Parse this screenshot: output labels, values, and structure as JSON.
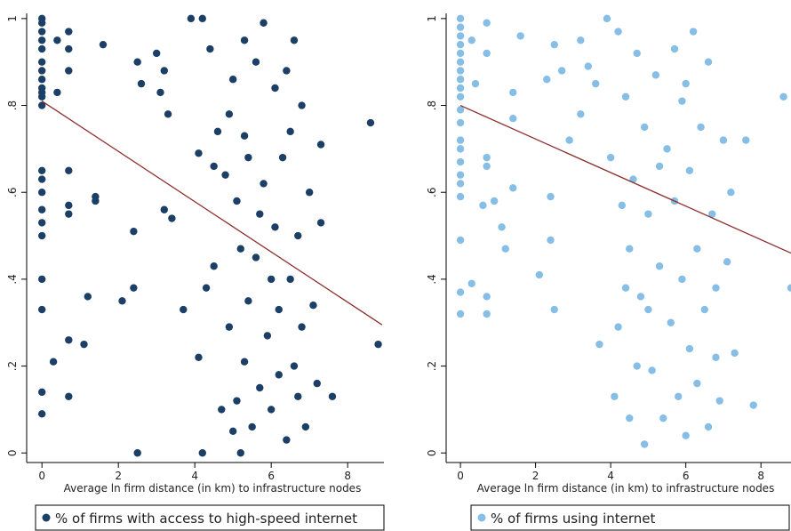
{
  "chart_data": [
    {
      "type": "scatter",
      "xlabel": "Average ln firm distance (in km) to infrastructure nodes",
      "xlim": [
        -0.4,
        8.95
      ],
      "xticks": [
        0,
        2,
        4,
        6,
        8
      ],
      "ylim": [
        -0.022,
        1.012
      ],
      "yticks": [
        0,
        {
          "value": 0.2,
          "label": ".2"
        },
        {
          "value": 0.4,
          "label": ".4"
        },
        {
          "value": 0.6,
          "label": ".6"
        },
        {
          "value": 0.8,
          "label": ".8"
        },
        1
      ],
      "x": [
        0,
        0,
        0,
        0,
        0,
        0,
        0,
        0,
        0,
        0,
        0,
        0,
        0,
        0,
        0,
        0,
        0,
        0,
        0,
        0,
        0,
        0,
        0.4,
        0.4,
        0.3,
        0.7,
        0.7,
        0.7,
        0.7,
        0.7,
        0.7,
        0.7,
        0.7,
        1.2,
        1.1,
        1.4,
        1.4,
        1.6,
        2.1,
        2.4,
        2.4,
        2.5,
        2.5,
        2.6,
        3.0,
        3.2,
        3.1,
        3.3,
        3.2,
        3.4,
        3.7,
        3.9,
        4.1,
        4.1,
        4.2,
        4.2,
        4.3,
        4.5,
        4.6,
        4.7,
        4.8,
        4.9,
        5.0,
        5.0,
        5.1,
        5.1,
        5.2,
        5.2,
        5.3,
        5.3,
        5.4,
        5.4,
        5.5,
        5.6,
        5.6,
        5.7,
        5.8,
        5.8,
        5.9,
        6.0,
        6.1,
        6.1,
        6.2,
        6.2,
        6.3,
        6.4,
        6.5,
        6.5,
        6.6,
        6.6,
        6.7,
        6.7,
        6.8,
        6.8,
        6.9,
        7.0,
        7.1,
        7.2,
        7.3,
        7.3,
        7.6,
        8.6,
        8.8,
        4.4,
        4.9,
        5.7,
        6.0,
        4.5,
        5.3,
        6.4
      ],
      "series": [
        {
          "name": "% of firms with access to high-speed internet",
          "color": "#1c3f66",
          "values": [
            1,
            0.99,
            0.97,
            0.95,
            0.93,
            0.9,
            0.88,
            0.86,
            0.84,
            0.83,
            0.82,
            0.8,
            0.65,
            0.63,
            0.6,
            0.56,
            0.53,
            0.5,
            0.4,
            0.33,
            0.14,
            0.09,
            0.95,
            0.83,
            0.21,
            0.97,
            0.93,
            0.88,
            0.65,
            0.57,
            0.55,
            0.26,
            0.13,
            0.36,
            0.25,
            0.59,
            0.58,
            0.94,
            0.35,
            0.38,
            0.51,
            0.9,
            0,
            0.85,
            0.92,
            0.88,
            0.83,
            0.78,
            0.56,
            0.54,
            0.33,
            1.0,
            0.22,
            0.69,
            1.0,
            0,
            0.38,
            0.43,
            0.74,
            0.1,
            0.64,
            0.29,
            0.05,
            0.86,
            0.58,
            0.12,
            0.47,
            0.0,
            0.95,
            0.21,
            0.68,
            0.35,
            0.06,
            0.9,
            0.45,
            0.15,
            0.99,
            0.62,
            0.27,
            0.1,
            0.84,
            0.52,
            0.33,
            0.18,
            0.68,
            0.03,
            0.74,
            0.4,
            0.95,
            0.2,
            0.5,
            0.13,
            0.8,
            0.29,
            0.06,
            0.6,
            0.34,
            0.16,
            0.71,
            0.53,
            0.13,
            0.76,
            0.25,
            0.93,
            0.78,
            0.55,
            0.4,
            0.66,
            0.73,
            0.88
          ]
        }
      ],
      "fit": {
        "color": "#8b2e2e",
        "x": [
          0,
          8.9
        ],
        "values": [
          0.81,
          0.295
        ]
      }
    },
    {
      "type": "scatter",
      "xlabel": "Average ln firm distance (in km) to infrastructure nodes",
      "xlim": [
        -0.38,
        8.8
      ],
      "xticks": [
        0,
        2,
        4,
        6,
        8
      ],
      "ylim": [
        -0.022,
        1.012
      ],
      "yticks": [
        0,
        {
          "value": 0.2,
          "label": ".2"
        },
        {
          "value": 0.4,
          "label": ".4"
        },
        {
          "value": 0.6,
          "label": ".6"
        },
        {
          "value": 0.8,
          "label": ".8"
        },
        1
      ],
      "x": [
        0,
        0,
        0,
        0,
        0,
        0,
        0,
        0,
        0,
        0,
        0,
        0,
        0,
        0,
        0,
        0,
        0,
        0,
        0,
        0,
        0,
        0.3,
        0.3,
        0.4,
        0.6,
        0.7,
        0.7,
        0.7,
        0.7,
        0.7,
        0.7,
        0.9,
        1.1,
        1.2,
        1.4,
        1.4,
        1.4,
        1.6,
        2.1,
        2.3,
        2.4,
        2.4,
        2.5,
        2.5,
        2.7,
        2.9,
        3.2,
        3.2,
        3.4,
        3.6,
        3.7,
        3.9,
        4.0,
        4.1,
        4.2,
        4.2,
        4.3,
        4.4,
        4.5,
        4.5,
        4.6,
        4.7,
        4.8,
        4.9,
        4.9,
        5.0,
        5.1,
        5.2,
        5.3,
        5.4,
        5.5,
        5.6,
        5.7,
        5.7,
        5.8,
        5.9,
        5.9,
        6.0,
        6.1,
        6.1,
        6.2,
        6.3,
        6.3,
        6.4,
        6.5,
        6.6,
        6.6,
        6.7,
        6.8,
        6.9,
        7.0,
        7.1,
        7.2,
        7.3,
        7.6,
        7.8,
        8.6,
        8.8,
        4.4,
        5.0,
        6.0,
        5.3,
        6.8,
        4.7
      ],
      "series": [
        {
          "name": "% of firms using internet",
          "color": "#86bee6",
          "values": [
            1,
            0.98,
            0.96,
            0.94,
            0.92,
            0.9,
            0.88,
            0.86,
            0.84,
            0.82,
            0.79,
            0.76,
            0.72,
            0.7,
            0.67,
            0.64,
            0.62,
            0.59,
            0.49,
            0.37,
            0.32,
            0.95,
            0.39,
            0.85,
            0.57,
            0.99,
            0.92,
            0.68,
            0.66,
            0.36,
            0.32,
            0.58,
            0.52,
            0.47,
            0.83,
            0.61,
            0.77,
            0.96,
            0.41,
            0.86,
            0.59,
            0.49,
            0.33,
            0.94,
            0.88,
            0.72,
            0.95,
            0.78,
            0.89,
            0.85,
            0.25,
            1.0,
            0.68,
            0.13,
            0.97,
            0.29,
            0.57,
            0.82,
            0.47,
            0.08,
            0.63,
            0.92,
            0.36,
            0.75,
            0.02,
            0.55,
            0.19,
            0.87,
            0.43,
            0.08,
            0.7,
            0.3,
            0.93,
            0.58,
            0.13,
            0.81,
            0.4,
            0.04,
            0.65,
            0.24,
            0.97,
            0.47,
            0.16,
            0.75,
            0.33,
            0.9,
            0.06,
            0.55,
            0.22,
            0.12,
            0.72,
            0.44,
            0.6,
            0.23,
            0.72,
            0.11,
            0.82,
            0.38,
            0.38,
            0.33,
            0.85,
            0.66,
            0.38,
            0.2
          ]
        }
      ],
      "fit": {
        "color": "#8b2e2e",
        "x": [
          0,
          8.8
        ],
        "values": [
          0.8,
          0.46
        ]
      }
    }
  ]
}
